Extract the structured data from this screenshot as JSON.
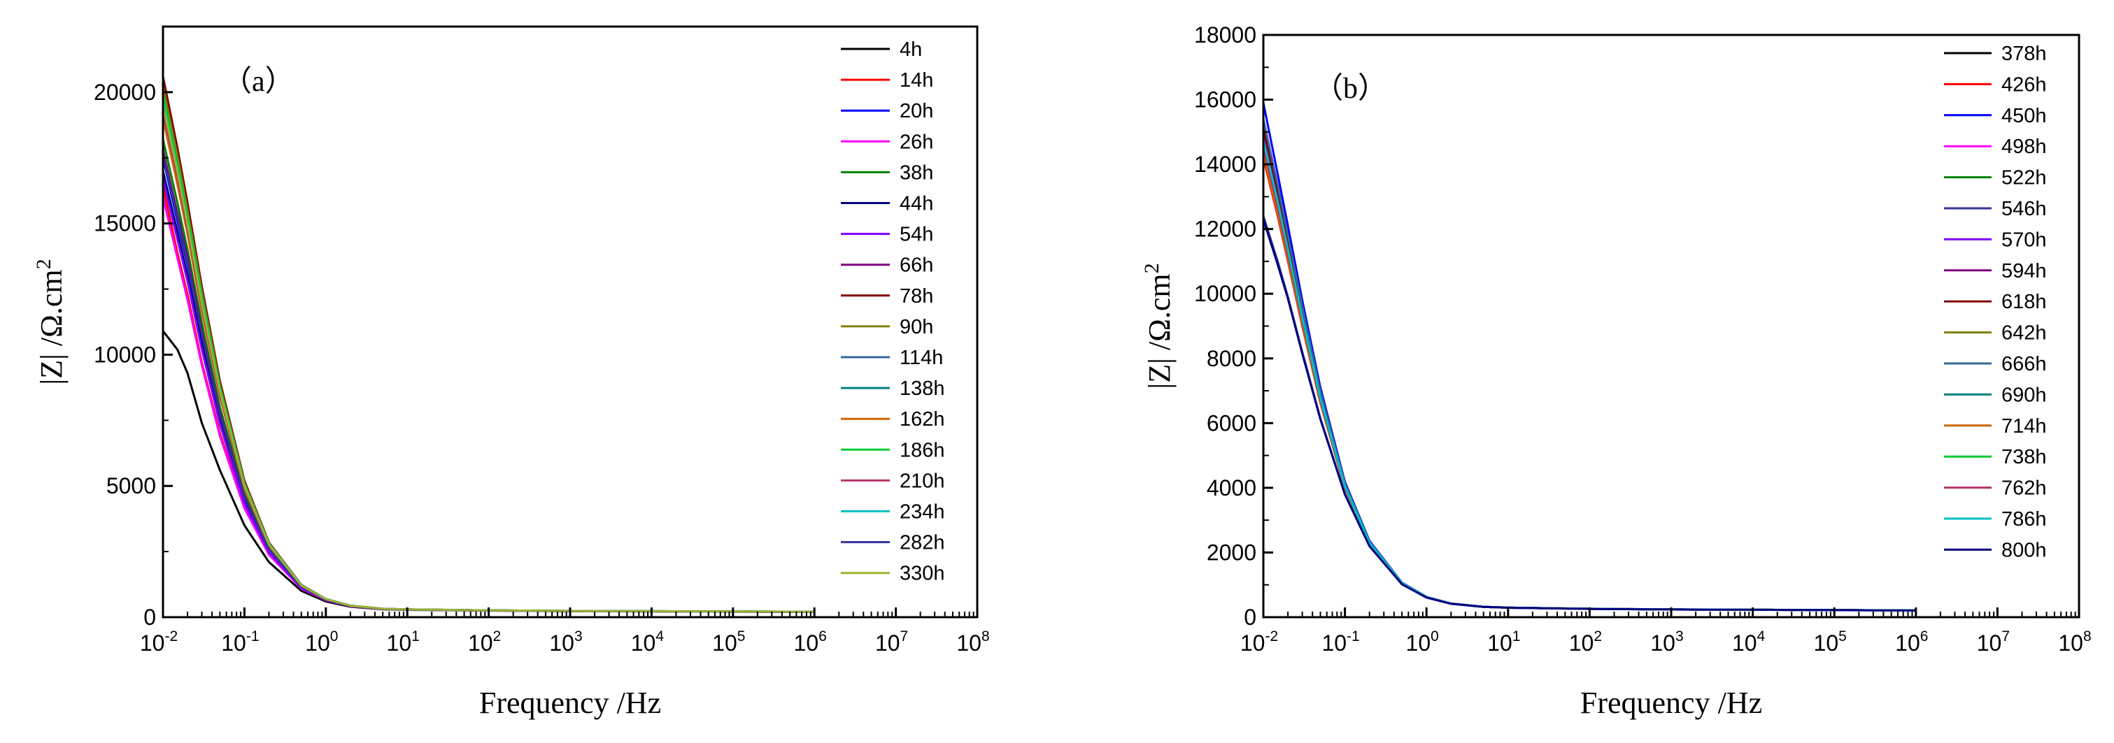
{
  "chart_data": [
    {
      "type": "line",
      "panel_label": "（a）",
      "xlabel": "Frequency /Hz",
      "ylabel": "|Z|  /Ω.cm",
      "ylabel_superscript": "2",
      "xscale": "log",
      "xlim_exponents": [
        -2,
        8
      ],
      "x_tick_base": "10",
      "x_tick_exponents": [
        "-2",
        "-1",
        "0",
        "1",
        "2",
        "3",
        "4",
        "5",
        "6",
        "7",
        "8"
      ],
      "ylim": [
        0,
        22500
      ],
      "y_ticks": [
        "0",
        "5000",
        "10000",
        "15000",
        "20000"
      ],
      "legend_position": "top-right",
      "x": [
        0.01,
        0.015,
        0.02,
        0.03,
        0.05,
        0.1,
        0.2,
        0.5,
        1,
        2,
        5,
        10,
        100,
        1000,
        10000,
        100000,
        1000000
      ],
      "series": [
        {
          "name": "4h",
          "color": "#000000",
          "values": [
            10900,
            10200,
            9300,
            7400,
            5600,
            3500,
            2100,
            1000,
            600,
            400,
            300,
            280,
            250,
            230,
            220,
            210,
            200
          ]
        },
        {
          "name": "14h",
          "color": "#ff0000",
          "values": [
            16400,
            13900,
            12300,
            9700,
            7000,
            4200,
            2400,
            1100,
            650,
            420,
            310,
            290,
            255,
            235,
            225,
            215,
            205
          ]
        },
        {
          "name": "20h",
          "color": "#0000ff",
          "values": [
            17500,
            15100,
            13400,
            10700,
            7700,
            4500,
            2550,
            1150,
            670,
            430,
            315,
            292,
            257,
            237,
            226,
            216,
            206
          ]
        },
        {
          "name": "26h",
          "color": "#ff00ff",
          "values": [
            16000,
            13700,
            12100,
            9600,
            6900,
            4150,
            2380,
            1090,
            645,
            418,
            308,
            288,
            254,
            234,
            224,
            214,
            204
          ]
        },
        {
          "name": "38h",
          "color": "#008000",
          "values": [
            18200,
            15800,
            14000,
            11200,
            8000,
            4700,
            2650,
            1180,
            680,
            435,
            318,
            294,
            258,
            238,
            227,
            217,
            207
          ]
        },
        {
          "name": "44h",
          "color": "#000080",
          "values": [
            17000,
            14700,
            13000,
            10400,
            7500,
            4400,
            2500,
            1130,
            662,
            427,
            313,
            291,
            256,
            236,
            225,
            215,
            205
          ]
        },
        {
          "name": "54h",
          "color": "#8000ff",
          "values": [
            16700,
            14400,
            12800,
            10200,
            7350,
            4330,
            2470,
            1120,
            658,
            425,
            312,
            290,
            255,
            235,
            225,
            215,
            205
          ]
        },
        {
          "name": "66h",
          "color": "#800080",
          "values": [
            17800,
            15400,
            13700,
            10900,
            7800,
            4600,
            2600,
            1160,
            675,
            432,
            316,
            293,
            257,
            237,
            226,
            216,
            206
          ]
        },
        {
          "name": "78h",
          "color": "#800000",
          "values": [
            20600,
            17900,
            15800,
            12600,
            9000,
            5200,
            2850,
            1230,
            695,
            442,
            322,
            297,
            260,
            240,
            229,
            219,
            209
          ]
        },
        {
          "name": "90h",
          "color": "#808000",
          "values": [
            20200,
            17600,
            15500,
            12400,
            8850,
            5120,
            2820,
            1220,
            692,
            440,
            321,
            296,
            259,
            239,
            228,
            218,
            208
          ]
        },
        {
          "name": "114h",
          "color": "#336699",
          "values": [
            19800,
            17200,
            15200,
            12150,
            8700,
            5050,
            2790,
            1210,
            690,
            439,
            320,
            296,
            259,
            239,
            228,
            218,
            208
          ]
        },
        {
          "name": "138h",
          "color": "#008080",
          "values": [
            19400,
            16900,
            14900,
            11900,
            8550,
            4980,
            2760,
            1200,
            688,
            438,
            320,
            295,
            259,
            239,
            228,
            218,
            208
          ]
        },
        {
          "name": "162h",
          "color": "#cc6600",
          "values": [
            19000,
            16500,
            14600,
            11650,
            8400,
            4900,
            2730,
            1195,
            686,
            437,
            319,
            295,
            258,
            238,
            227,
            217,
            207
          ]
        },
        {
          "name": "186h",
          "color": "#00cc33",
          "values": [
            19900,
            17300,
            15300,
            12200,
            8750,
            5070,
            2800,
            1212,
            690,
            439,
            320,
            296,
            259,
            239,
            228,
            218,
            208
          ]
        },
        {
          "name": "210h",
          "color": "#b3336b",
          "values": [
            19300,
            16800,
            14850,
            11850,
            8500,
            4960,
            2750,
            1198,
            687,
            437,
            319,
            295,
            258,
            238,
            227,
            217,
            207
          ]
        },
        {
          "name": "234h",
          "color": "#00c0c0",
          "values": [
            19600,
            17050,
            15050,
            12000,
            8620,
            5010,
            2775,
            1205,
            689,
            438,
            320,
            295,
            259,
            239,
            228,
            218,
            208
          ]
        },
        {
          "name": "282h",
          "color": "#333399",
          "values": [
            17600,
            15250,
            13500,
            10800,
            7750,
            4570,
            2580,
            1155,
            672,
            431,
            316,
            293,
            257,
            237,
            226,
            216,
            206
          ]
        },
        {
          "name": "330h",
          "color": "#99b333",
          "values": [
            19500,
            17000,
            15000,
            11950,
            8600,
            5000,
            2770,
            1203,
            688,
            438,
            320,
            295,
            259,
            239,
            228,
            218,
            208
          ]
        }
      ]
    },
    {
      "type": "line",
      "panel_label": "（b）",
      "xlabel": "Frequency /Hz",
      "ylabel": "|Z|  /Ω.cm",
      "ylabel_superscript": "2",
      "xscale": "log",
      "xlim_exponents": [
        -2,
        8
      ],
      "x_tick_base": "10",
      "x_tick_exponents": [
        "-2",
        "-1",
        "0",
        "1",
        "2",
        "3",
        "4",
        "5",
        "6",
        "7",
        "8"
      ],
      "ylim": [
        0,
        18000
      ],
      "y_ticks": [
        "0",
        "2000",
        "4000",
        "6000",
        "8000",
        "10000",
        "12000",
        "14000",
        "16000",
        "18000"
      ],
      "legend_position": "top-right",
      "x": [
        0.01,
        0.015,
        0.02,
        0.03,
        0.05,
        0.1,
        0.2,
        0.5,
        1,
        2,
        5,
        10,
        100,
        1000,
        10000,
        100000,
        1000000
      ],
      "series": [
        {
          "name": "378h",
          "color": "#000000",
          "values": [
            14800,
            12900,
            11400,
            9300,
            6800,
            4050,
            2300,
            1050,
            620,
            420,
            320,
            295,
            260,
            240,
            230,
            220,
            210
          ]
        },
        {
          "name": "426h",
          "color": "#ff0000",
          "values": [
            14200,
            12400,
            11000,
            9000,
            6620,
            3980,
            2270,
            1040,
            615,
            418,
            319,
            294,
            259,
            239,
            229,
            219,
            209
          ]
        },
        {
          "name": "450h",
          "color": "#0000ff",
          "values": [
            15900,
            13700,
            12100,
            9800,
            7100,
            4180,
            2360,
            1070,
            628,
            423,
            322,
            296,
            261,
            241,
            231,
            221,
            211
          ]
        },
        {
          "name": "498h",
          "color": "#ff00ff",
          "values": [
            14500,
            12650,
            11200,
            9150,
            6700,
            4010,
            2285,
            1045,
            618,
            419,
            319,
            294,
            259,
            239,
            229,
            219,
            209
          ]
        },
        {
          "name": "522h",
          "color": "#008000",
          "values": [
            15000,
            13050,
            11550,
            9400,
            6860,
            4080,
            2310,
            1055,
            622,
            421,
            320,
            295,
            260,
            240,
            230,
            220,
            210
          ]
        },
        {
          "name": "546h",
          "color": "#333399",
          "values": [
            12400,
            11000,
            9900,
            8200,
            6150,
            3800,
            2200,
            1020,
            608,
            415,
            317,
            293,
            258,
            238,
            228,
            218,
            208
          ]
        },
        {
          "name": "570h",
          "color": "#8000ff",
          "values": [
            14600,
            12700,
            11250,
            9200,
            6720,
            4020,
            2290,
            1047,
            619,
            420,
            320,
            294,
            259,
            239,
            229,
            219,
            209
          ]
        },
        {
          "name": "594h",
          "color": "#800080",
          "values": [
            14900,
            12950,
            11480,
            9350,
            6830,
            4070,
            2305,
            1052,
            621,
            421,
            320,
            295,
            260,
            240,
            230,
            220,
            210
          ]
        },
        {
          "name": "618h",
          "color": "#800000",
          "values": [
            15200,
            13200,
            11680,
            9500,
            6920,
            4110,
            2325,
            1058,
            624,
            422,
            321,
            295,
            260,
            240,
            230,
            220,
            210
          ]
        },
        {
          "name": "642h",
          "color": "#808000",
          "values": [
            14700,
            12800,
            11330,
            9250,
            6760,
            4040,
            2295,
            1049,
            620,
            420,
            320,
            294,
            259,
            239,
            229,
            219,
            209
          ]
        },
        {
          "name": "666h",
          "color": "#336699",
          "values": [
            15400,
            13350,
            11800,
            9600,
            6980,
            4130,
            2335,
            1062,
            625,
            422,
            321,
            296,
            260,
            240,
            230,
            220,
            210
          ]
        },
        {
          "name": "690h",
          "color": "#008080",
          "values": [
            14400,
            12550,
            11120,
            9100,
            6670,
            3995,
            2280,
            1043,
            617,
            419,
            319,
            294,
            259,
            239,
            229,
            219,
            209
          ]
        },
        {
          "name": "714h",
          "color": "#cc6600",
          "values": [
            14300,
            12480,
            11060,
            9050,
            6640,
            3985,
            2275,
            1041,
            616,
            418,
            319,
            294,
            259,
            239,
            229,
            219,
            209
          ]
        },
        {
          "name": "738h",
          "color": "#00cc33",
          "values": [
            14650,
            12750,
            11290,
            9220,
            6740,
            4030,
            2292,
            1048,
            619,
            420,
            320,
            294,
            259,
            239,
            229,
            219,
            209
          ]
        },
        {
          "name": "762h",
          "color": "#b3336b",
          "values": [
            14550,
            12680,
            11230,
            9170,
            6710,
            4015,
            2287,
            1046,
            618,
            419,
            319,
            294,
            259,
            239,
            229,
            219,
            209
          ]
        },
        {
          "name": "786h",
          "color": "#00c0c0",
          "values": [
            14750,
            12850,
            11370,
            9270,
            6780,
            4045,
            2298,
            1050,
            620,
            420,
            320,
            295,
            259,
            239,
            229,
            219,
            209
          ]
        },
        {
          "name": "800h",
          "color": "#000080",
          "values": [
            12300,
            10900,
            9850,
            8150,
            6120,
            3790,
            2195,
            1018,
            607,
            414,
            317,
            293,
            258,
            238,
            228,
            218,
            208
          ]
        }
      ]
    }
  ]
}
